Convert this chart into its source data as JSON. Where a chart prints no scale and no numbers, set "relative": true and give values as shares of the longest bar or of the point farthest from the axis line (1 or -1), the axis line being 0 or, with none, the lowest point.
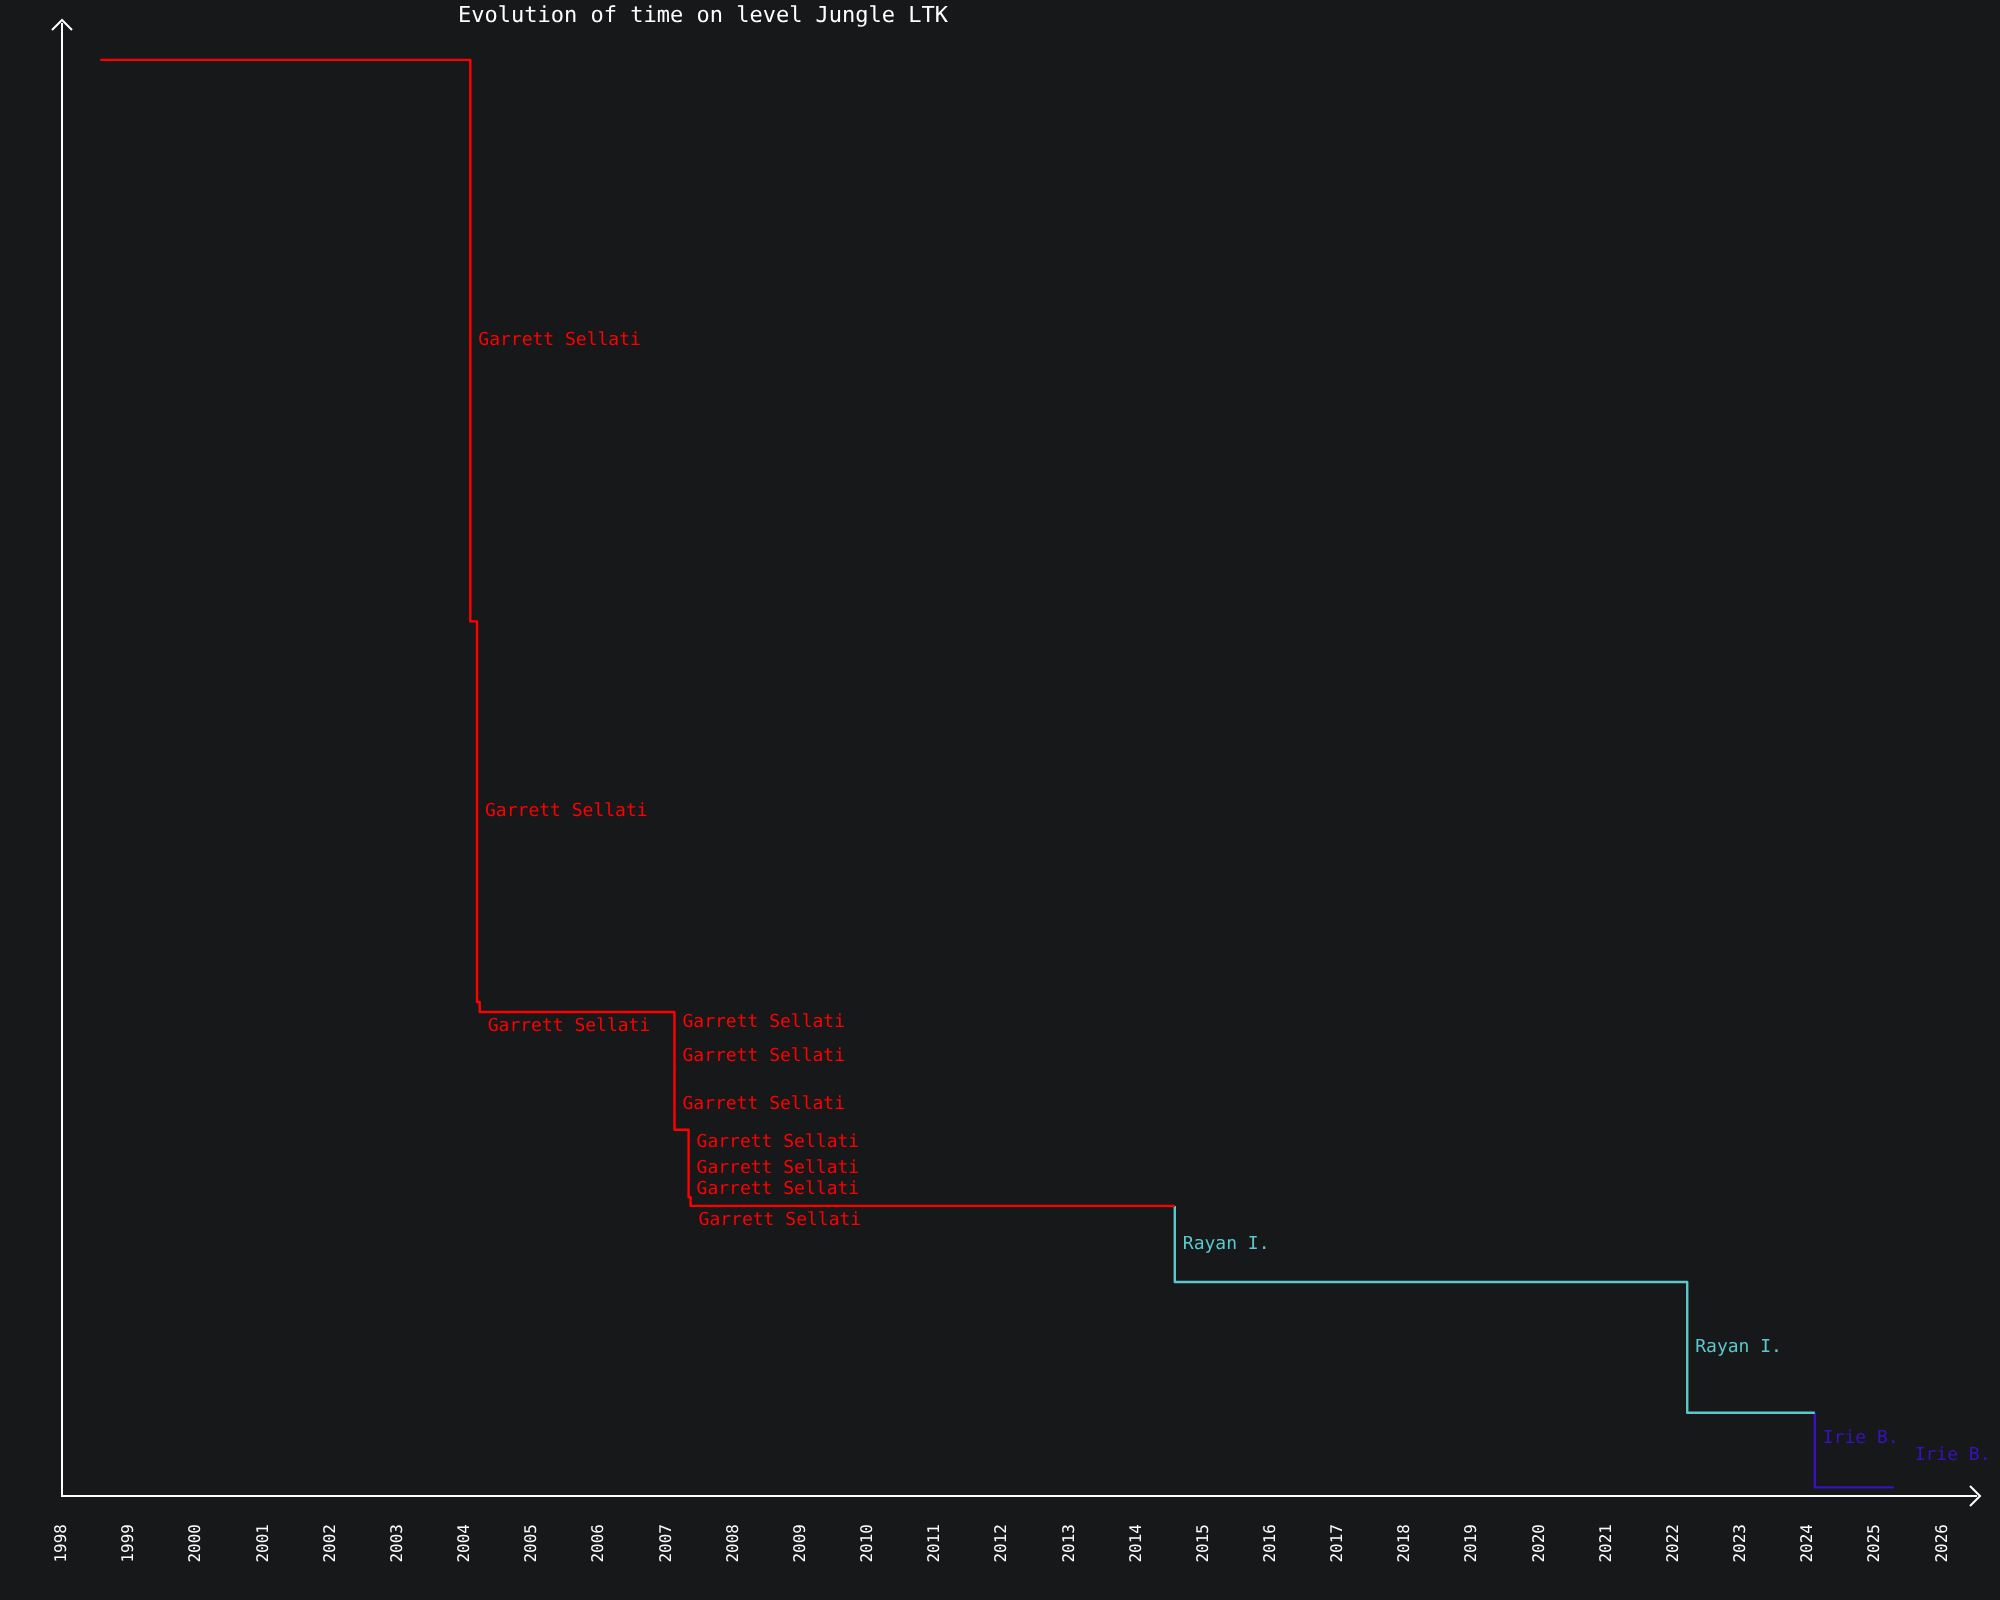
{
  "chart_data": {
    "type": "step",
    "title": "Evolution of time on level Jungle LTK",
    "relative": true,
    "xlim": [
      1998,
      2026.5
    ],
    "xticks": [
      1998,
      1999,
      2000,
      2001,
      2002,
      2003,
      2004,
      2005,
      2006,
      2007,
      2008,
      2009,
      2010,
      2011,
      2012,
      2013,
      2014,
      2015,
      2016,
      2017,
      2018,
      2019,
      2020,
      2021,
      2022,
      2023,
      2024,
      2025,
      2026
    ],
    "legend": false,
    "grid": false,
    "marker": "none",
    "series": [
      {
        "name": "Garrett Sellati",
        "color": "#ff0000",
        "x": [
          1998.57,
          2004.08,
          2004.18,
          2004.22,
          2007.12,
          2007.12,
          2007.12,
          2007.33,
          2007.33,
          2007.33,
          2007.36,
          2014.57
        ],
        "values": [
          1,
          0.609,
          0.344,
          0.337,
          0.323,
          0.29,
          0.255,
          0.238,
          0.219,
          0.208,
          0.202,
          0.202
        ]
      },
      {
        "name": "Rayan I.",
        "color": "#5bc8cc",
        "x": [
          2014.57,
          2014.57,
          2022.2,
          2024.1
        ],
        "values": [
          0.202,
          0.149,
          0.058,
          0.058
        ]
      },
      {
        "name": "Irie B.",
        "color": "#3a10c0",
        "x": [
          2024.1,
          2024.1,
          2024.1,
          2025.28
        ],
        "values": [
          0.058,
          0.05,
          0.006,
          0.006
        ]
      }
    ]
  }
}
